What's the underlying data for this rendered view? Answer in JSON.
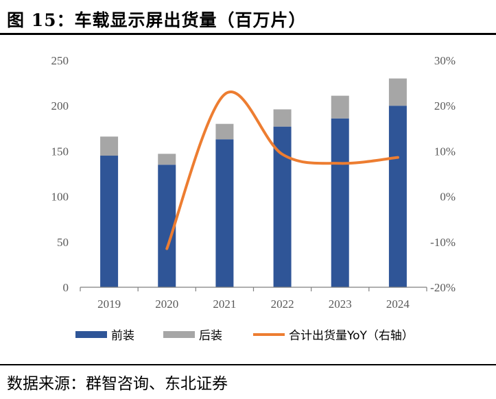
{
  "title": "图 15：车载显示屏出货量（百万片）",
  "source": "数据来源：群智咨询、东北证券",
  "colors": {
    "front": "#2f5597",
    "rear": "#a6a6a6",
    "yoy": "#ed7d31"
  },
  "chart_data": {
    "type": "bar",
    "stacked": true,
    "categories": [
      "2019",
      "2020",
      "2021",
      "2022",
      "2023",
      "2024"
    ],
    "series": [
      {
        "name": "前装",
        "values": [
          145,
          135,
          163,
          177,
          186,
          200
        ]
      },
      {
        "name": "后装",
        "values": [
          21,
          12,
          17,
          19,
          25,
          30
        ]
      }
    ],
    "line_series": {
      "name": "合计出货量YoY（右轴）",
      "axis": "right",
      "values": [
        null,
        -11.5,
        22.5,
        9.3,
        7.3,
        8.6
      ]
    },
    "ylim": [
      0,
      250
    ],
    "yticks": [
      "0",
      "50",
      "100",
      "150",
      "200",
      "250"
    ],
    "y2lim": [
      -20,
      30
    ],
    "y2ticks": [
      "-20%",
      "-10%",
      "0%",
      "10%",
      "20%",
      "30%"
    ],
    "legend": "bottom",
    "grid": false
  }
}
